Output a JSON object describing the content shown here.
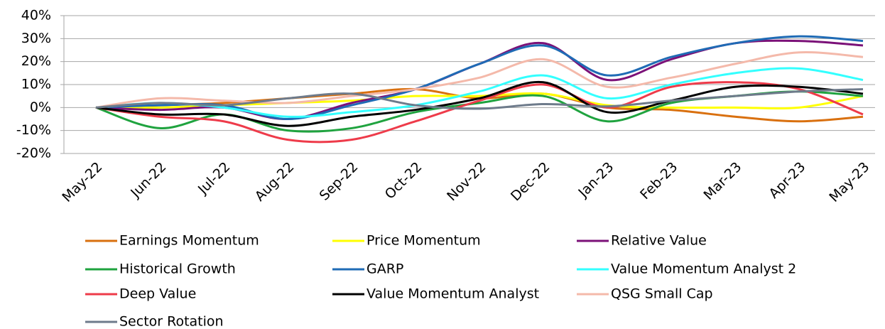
{
  "chart_data": {
    "type": "line",
    "categories": [
      "May-22",
      "Jun-22",
      "Jul-22",
      "Aug-22",
      "Sep-22",
      "Oct-22",
      "Nov-22",
      "Dec-22",
      "Jan-23",
      "Feb-23",
      "Mar-23",
      "Apr-23",
      "May-23"
    ],
    "ylim": [
      -20,
      40
    ],
    "yticks": [
      {
        "value": -20,
        "label": "-20%"
      },
      {
        "value": -10,
        "label": "-10%"
      },
      {
        "value": 0,
        "label": "0%"
      },
      {
        "value": 10,
        "label": "10%"
      },
      {
        "value": 20,
        "label": "20%"
      },
      {
        "value": 30,
        "label": "30%"
      },
      {
        "value": 40,
        "label": "40%"
      }
    ],
    "grid": true,
    "series": [
      {
        "name": "Earnings Momentum",
        "color": "#d9700f",
        "values": [
          0,
          1,
          2,
          4,
          6,
          8,
          4,
          6,
          0,
          -1,
          -4,
          -6,
          -4
        ]
      },
      {
        "name": "Price Momentum",
        "color": "#ffff00",
        "values": [
          0,
          0,
          1,
          2,
          3,
          5,
          5,
          6,
          1,
          0,
          0,
          0,
          5
        ]
      },
      {
        "name": "Relative Value",
        "color": "#7b1178",
        "values": [
          0,
          -1,
          0,
          -5,
          2,
          8,
          19,
          28,
          12,
          21,
          28,
          29,
          27
        ]
      },
      {
        "name": "Historical Growth",
        "color": "#1fa33f",
        "values": [
          0,
          -9,
          -3,
          -10,
          -9,
          -2,
          2,
          5,
          -6,
          2,
          5,
          7,
          5
        ]
      },
      {
        "name": "GARP",
        "color": "#1f6bb5",
        "values": [
          0,
          1,
          1,
          -5,
          1,
          8,
          19,
          27,
          14,
          22,
          28,
          31,
          29
        ]
      },
      {
        "name": "Value Momentum Analyst 2",
        "color": "#33ffff",
        "values": [
          0,
          2,
          0,
          -4,
          -2,
          1,
          7,
          14,
          4,
          10,
          15,
          17,
          12
        ]
      },
      {
        "name": "Deep Value",
        "color": "#ee3b4a",
        "values": [
          0,
          -4,
          -6,
          -14,
          -14,
          -6,
          3,
          10,
          0,
          9,
          11,
          8,
          -3
        ]
      },
      {
        "name": "Value Momentum Analyst",
        "color": "#000000",
        "values": [
          0,
          -3,
          -3,
          -8,
          -4,
          -1,
          4,
          11,
          -2,
          3,
          9,
          9,
          6
        ]
      },
      {
        "name": "QSG Small Cap",
        "color": "#f4b9aa",
        "values": [
          0,
          4,
          3,
          2,
          5,
          8,
          13,
          21,
          9,
          13,
          19,
          24,
          22
        ]
      },
      {
        "name": "Sector Rotation",
        "color": "#6e7b8b",
        "values": [
          0,
          2,
          1,
          4,
          6,
          1,
          -0.5,
          1.5,
          0.5,
          3,
          5,
          7,
          8
        ]
      }
    ]
  }
}
